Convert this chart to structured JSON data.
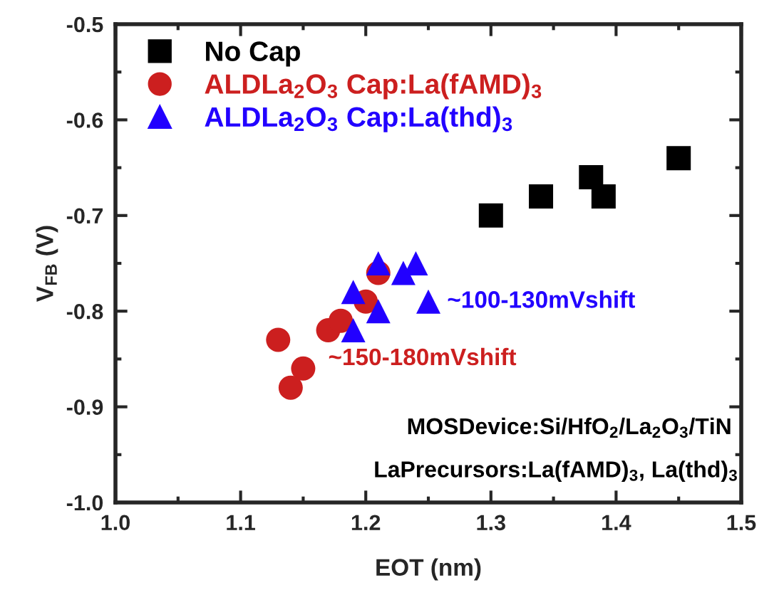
{
  "chart_data": {
    "type": "scatter",
    "xlabel": "EOT (nm)",
    "ylabel": "V$_{FB}$ (V)",
    "xlim": [
      1.0,
      1.5
    ],
    "xticks": [
      {
        "value": 1.0,
        "label": "1.0"
      },
      {
        "value": 1.1,
        "label": "1.1"
      },
      {
        "value": 1.2,
        "label": "1.2"
      },
      {
        "value": 1.3,
        "label": "1.3"
      },
      {
        "value": 1.4,
        "label": "1.4"
      },
      {
        "value": 1.5,
        "label": "1.5"
      }
    ],
    "ylim": [
      -1.0,
      -0.5
    ],
    "yticks": [
      {
        "value": -1.0,
        "label": "-1.0"
      },
      {
        "value": -0.9,
        "label": "-0.9"
      },
      {
        "value": -0.8,
        "label": "-0.8"
      },
      {
        "value": -0.7,
        "label": "-0.7"
      },
      {
        "value": -0.6,
        "label": "-0.6"
      },
      {
        "value": -0.5,
        "label": "-0.5"
      }
    ],
    "grid": false,
    "legend": "top left",
    "series": [
      {
        "name": "No Cap",
        "color": "#000000",
        "marker": "square",
        "x": [
          1.3,
          1.34,
          1.38,
          1.39,
          1.45
        ],
        "values": [
          -0.7,
          -0.68,
          -0.66,
          -0.68,
          -0.64
        ]
      },
      {
        "name": "ALDLa$_{2}$O$_{3}$ Cap:La(fAMD)$_{3}$",
        "color": "#cc1f1f",
        "marker": "circle",
        "x": [
          1.13,
          1.15,
          1.14,
          1.17,
          1.18,
          1.2,
          1.21
        ],
        "values": [
          -0.83,
          -0.86,
          -0.88,
          -0.82,
          -0.81,
          -0.79,
          -0.76
        ]
      },
      {
        "name": "ALDLa$_{2}$O$_{3}$ Cap:La(thd)$_{3}$",
        "color": "#2200ff",
        "marker": "triangle",
        "x": [
          1.21,
          1.23,
          1.24,
          1.19,
          1.21,
          1.25,
          1.19
        ],
        "values": [
          -0.75,
          -0.76,
          -0.75,
          -0.78,
          -0.8,
          -0.79,
          -0.82
        ]
      }
    ],
    "annotations": [
      "~100-130mVshift",
      "~150-180mVshift",
      "MOSDevice:Si/HfO$_{2}$/La$_{2}$O$_{3}$/TiN",
      "LaPrecursors:La(fAMD)$_{3}$, La(thd)$_{3}$"
    ]
  }
}
